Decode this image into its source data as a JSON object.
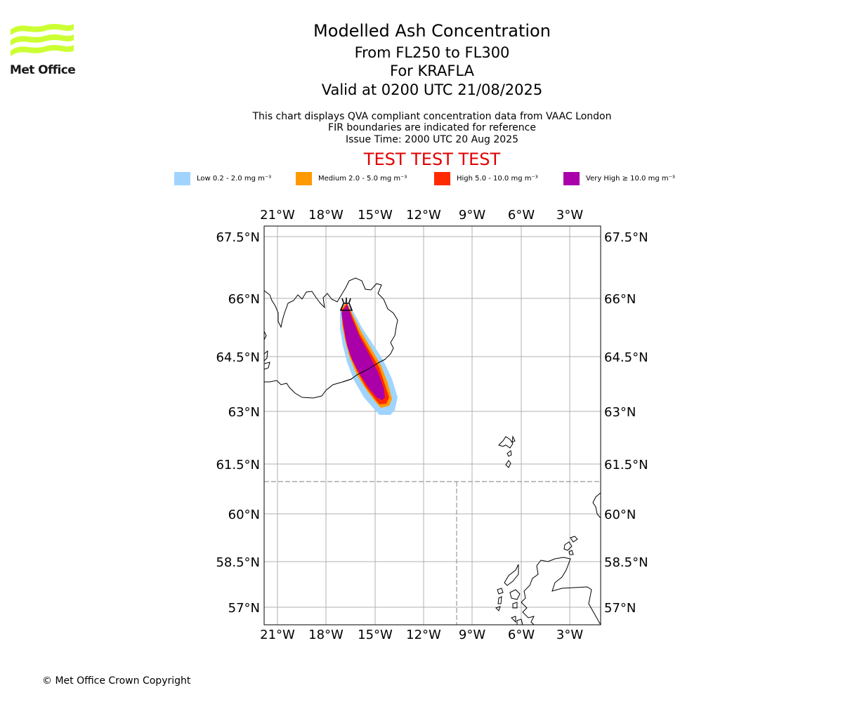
{
  "logo": {
    "text": "Met Office",
    "wave_color": "#ccff33"
  },
  "header": {
    "title": "Modelled Ash Concentration",
    "levels": "From FL250 to FL300",
    "volcano": "For KRAFLA",
    "valid": "Valid at 0200 UTC 21/08/2025",
    "info_1": "This chart displays QVA compliant concentration data from VAAC London",
    "info_2": "FIR boundaries are indicated for reference",
    "issue": "Issue Time: 2000 UTC 20 Aug 2025",
    "test_banner": "TEST TEST TEST",
    "test_color": "#e00000"
  },
  "legend": [
    {
      "label": "Low 0.2 - 2.0 mg m⁻³",
      "color": "#a0d4ff"
    },
    {
      "label": "Medium 2.0 - 5.0 mg m⁻³",
      "color": "#ff9900"
    },
    {
      "label": "High 5.0 - 10.0 mg m⁻³",
      "color": "#ff2a00"
    },
    {
      "label": "Very High ≥ 10.0 mg m⁻³",
      "color": "#aa00aa"
    }
  ],
  "map": {
    "longitude_ticks": [
      "21°W",
      "18°W",
      "15°W",
      "12°W",
      "9°W",
      "6°W",
      "3°W"
    ],
    "latitude_ticks": [
      "67.5°N",
      "66°N",
      "64.5°N",
      "63°N",
      "61.5°N",
      "60°N",
      "58.5°N",
      "57°N"
    ],
    "volcano_marker": "volcano-icon"
  },
  "footer": {
    "copyright": "© Met Office Crown Copyright"
  }
}
